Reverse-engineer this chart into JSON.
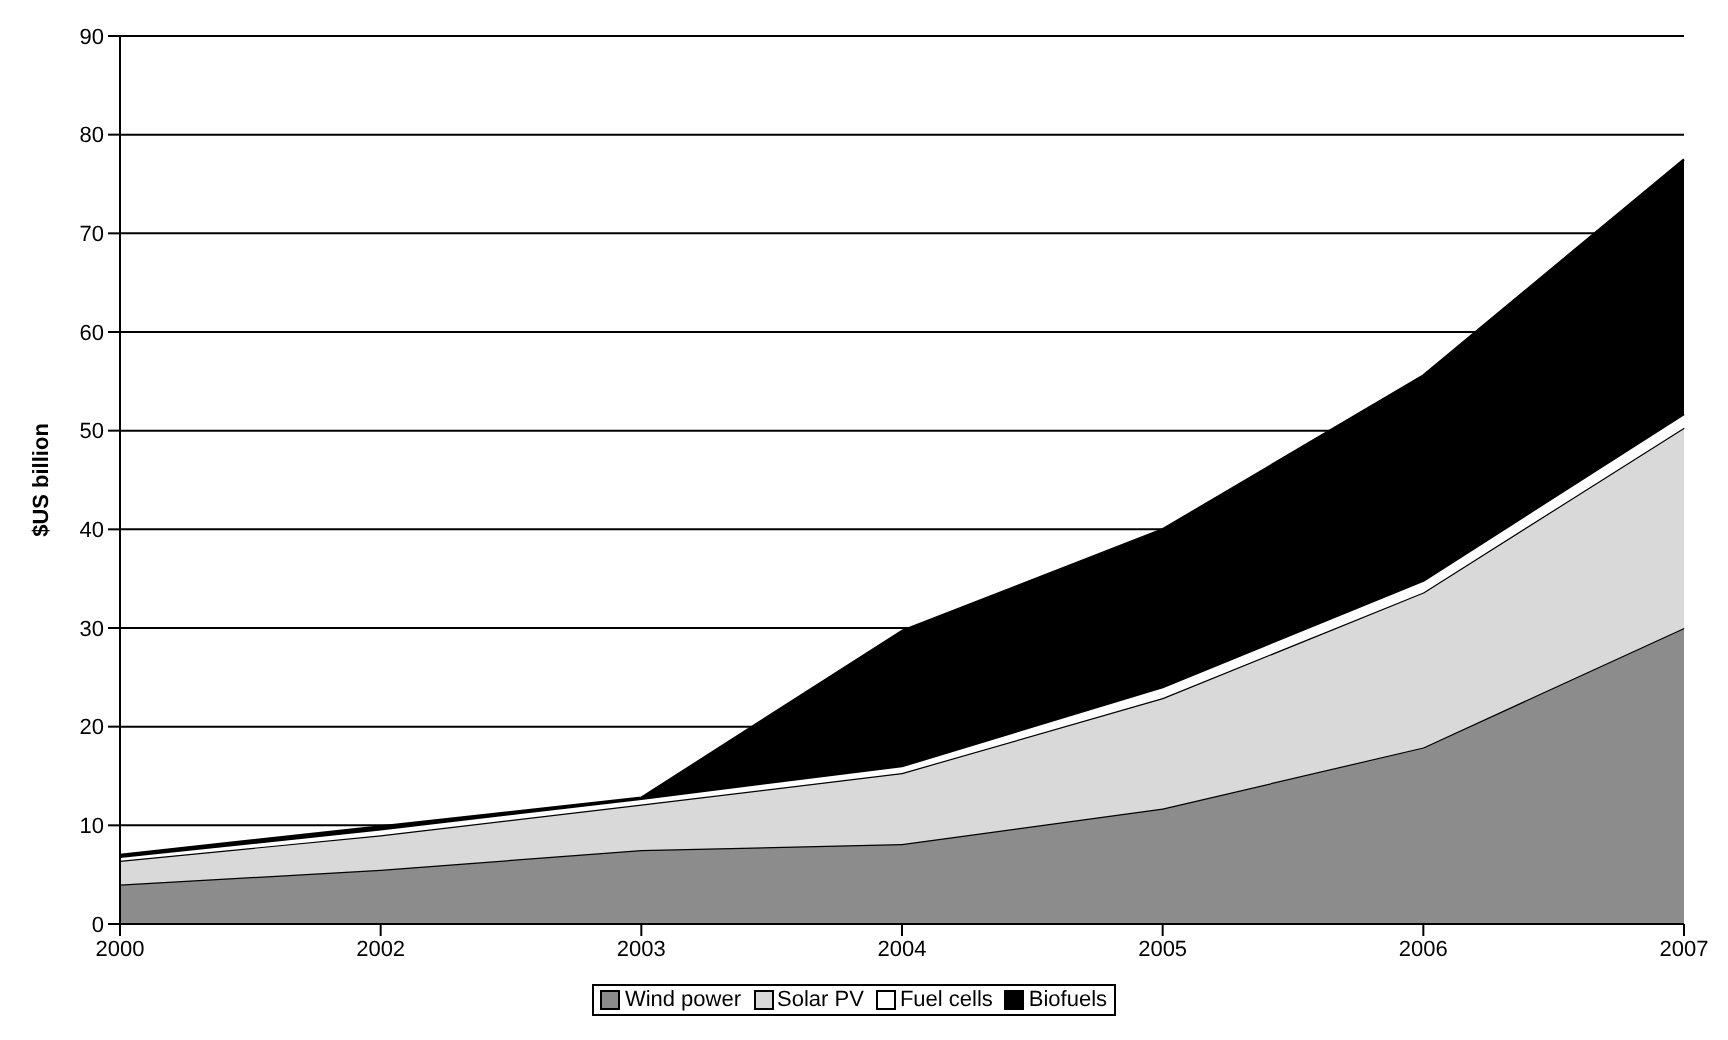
{
  "chart_data": {
    "type": "area",
    "stacked": true,
    "ylabel": "$US billion",
    "categories": [
      "2000",
      "2002",
      "2003",
      "2004",
      "2005",
      "2006",
      "2007"
    ],
    "series": [
      {
        "name": "Wind power",
        "color": "#8c8c8c",
        "values": [
          4.0,
          5.5,
          7.5,
          8.1,
          11.7,
          17.9,
          30.0
        ]
      },
      {
        "name": "Solar PV",
        "color": "#d9d9d9",
        "values": [
          2.4,
          3.5,
          4.6,
          7.2,
          11.2,
          15.7,
          20.3
        ]
      },
      {
        "name": "Fuel cells",
        "color": "#ffffff",
        "values": [
          0.4,
          0.6,
          0.6,
          0.7,
          1.1,
          1.2,
          1.4
        ]
      },
      {
        "name": "Biofuels",
        "color": "#000000",
        "values": [
          0.2,
          0.3,
          0.1,
          13.7,
          16.0,
          20.8,
          25.8
        ]
      }
    ],
    "ylim": [
      0,
      90
    ],
    "yticks": [
      0,
      10,
      20,
      30,
      40,
      50,
      60,
      70,
      80,
      90
    ],
    "grid": "y",
    "legend": "bottom"
  }
}
